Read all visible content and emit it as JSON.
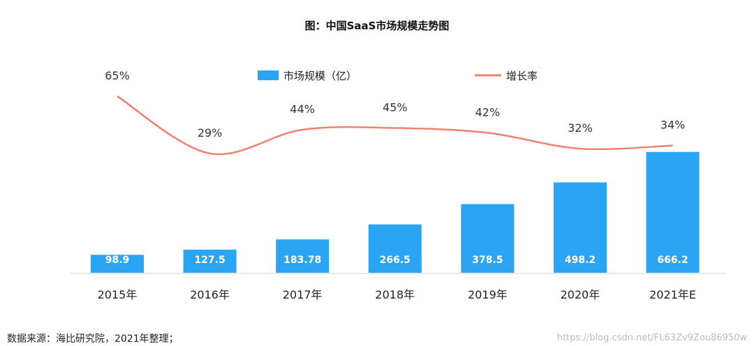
{
  "chart_data": {
    "type": "bar",
    "title": "图：中国SaaS市场规模走势图",
    "categories": [
      "2015年",
      "2016年",
      "2017年",
      "2018年",
      "2019年",
      "2020年",
      "2021年E"
    ],
    "series": [
      {
        "name": "市场规模（亿）",
        "type": "bar",
        "values": [
          98.9,
          127.5,
          183.78,
          266.5,
          378.5,
          498.2,
          666.2
        ],
        "labels": [
          "98.9",
          "127.5",
          "183.78",
          "266.5",
          "378.5",
          "498.2",
          "666.2"
        ],
        "color": "#2aa5f4"
      },
      {
        "name": "增长率",
        "type": "line",
        "values": [
          65,
          29,
          44,
          45,
          42,
          32,
          34
        ],
        "labels": [
          "65%",
          "29%",
          "44%",
          "45%",
          "42%",
          "32%",
          "34%"
        ],
        "color": "#f08070"
      }
    ],
    "legend_position": "top",
    "grid": false
  },
  "source_note": "数据来源：海比研究院，2021年整理；",
  "watermark": {
    "text": "海比研究院",
    "url": "https://blog.csdn.net/FL63Zv9Zou86950w"
  }
}
